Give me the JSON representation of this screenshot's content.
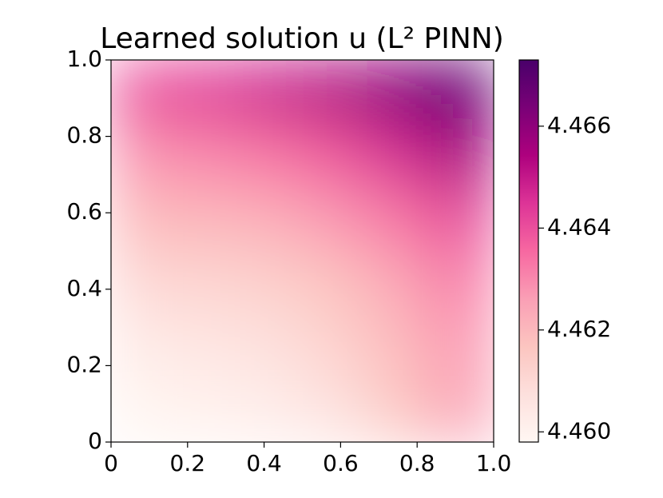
{
  "chart_data": {
    "type": "heatmap",
    "title": "Learned solution u (L² PINN)",
    "x": [
      0.083,
      0.25,
      0.417,
      0.583,
      0.75,
      0.917
    ],
    "y": [
      0.083,
      0.25,
      0.417,
      0.583,
      0.75,
      0.917
    ],
    "z": [
      [
        4.4599,
        4.46,
        4.4602,
        4.4606,
        4.4615,
        4.4625
      ],
      [
        4.4603,
        4.4605,
        4.4607,
        4.4612,
        4.4619,
        4.4627
      ],
      [
        4.461,
        4.4611,
        4.4613,
        4.4617,
        4.4624,
        4.4632
      ],
      [
        4.4619,
        4.462,
        4.4622,
        4.4627,
        4.4633,
        4.4641
      ],
      [
        4.4628,
        4.463,
        4.4633,
        4.4638,
        4.4646,
        4.4655
      ],
      [
        4.464,
        4.4643,
        4.4648,
        4.4653,
        4.4661,
        4.4669
      ]
    ],
    "xlim": [
      0,
      1
    ],
    "ylim": [
      0,
      1
    ],
    "xticks": [
      0,
      0.2,
      0.4,
      0.6,
      0.8,
      {
        "value": 1,
        "label": "1.0"
      }
    ],
    "yticks": [
      0,
      0.2,
      0.4,
      0.6,
      0.8,
      {
        "value": 1,
        "label": "1.0"
      }
    ],
    "zlim": [
      4.4598,
      4.4673
    ],
    "zticks": [
      {
        "value": 4.46,
        "label": "4.460"
      },
      {
        "value": 4.462,
        "label": "4.462"
      },
      {
        "value": 4.464,
        "label": "4.464"
      },
      {
        "value": 4.466,
        "label": "4.466"
      }
    ],
    "colormap": [
      "#fff7f3",
      "#fde0dd",
      "#fcc5c0",
      "#fa9fb5",
      "#f768a1",
      "#dd3497",
      "#ae017e",
      "#7a0177",
      "#49006a"
    ]
  }
}
